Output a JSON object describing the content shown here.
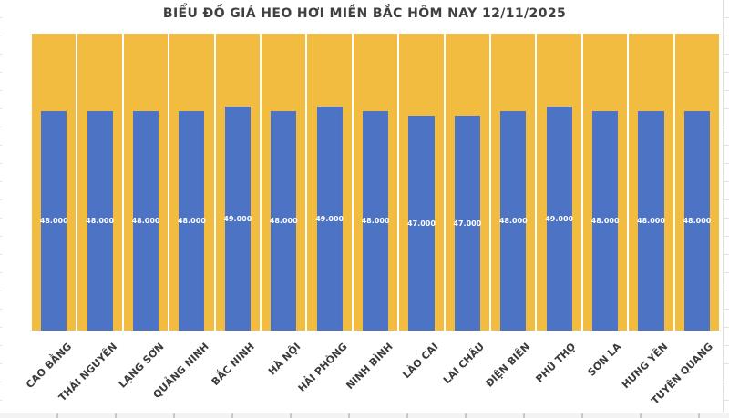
{
  "title": "BIỂU ĐỒ GIÁ HEO HƠI MIỀN BẮC HÔM NAY 12/11/2025",
  "colors": {
    "bar": "#4d73c5",
    "column_background": "#f2bc41",
    "value_label": "#ffffff",
    "axis_label": "#3b3b3b",
    "title": "#404040"
  },
  "chart_data": {
    "type": "bar",
    "title": "BIỂU ĐỒ GIÁ HEO HƠI MIỀN BẮC HÔM NAY 12/11/2025",
    "categories": [
      "CAO BẰNG",
      "THÁI NGUYÊN",
      "LẠNG SƠN",
      "QUẢNG NINH",
      "BẮC NINH",
      "HÀ NỘI",
      "HẢI PHÒNG",
      "NINH BÌNH",
      "LÀO CAI",
      "LAI CHÂU",
      "ĐIỆN BIÊN",
      "PHÚ THỌ",
      "SƠN LA",
      "HƯNG YÊN",
      "TUYÊN QUANG"
    ],
    "values": [
      48000,
      48000,
      48000,
      48000,
      49000,
      48000,
      49000,
      48000,
      47000,
      47000,
      48000,
      49000,
      48000,
      48000,
      48000
    ],
    "value_labels": [
      "48.000",
      "48.000",
      "48.000",
      "48.000",
      "49.000",
      "48.000",
      "49.000",
      "48.000",
      "47.000",
      "47.000",
      "48.000",
      "49.000",
      "48.000",
      "48.000",
      "48.000"
    ],
    "xlabel": "",
    "ylabel": "",
    "ylim": [
      0,
      65000
    ],
    "grid": false,
    "legend_position": "none",
    "bar_color": "#4d73c5",
    "column_background_color": "#f2bc41",
    "value_label_position": "center"
  }
}
